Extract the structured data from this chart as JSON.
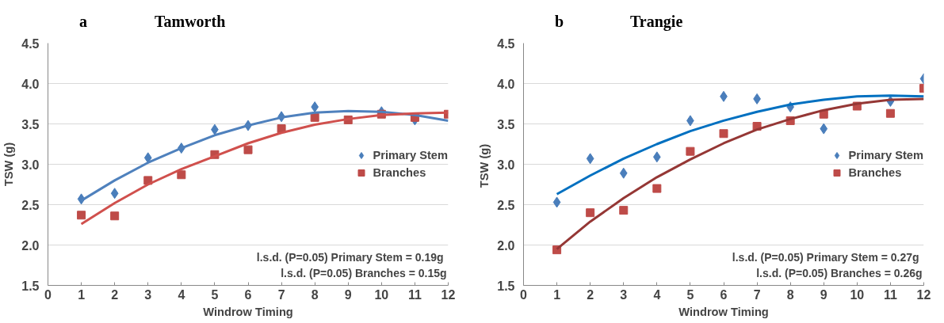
{
  "chart_data": [
    {
      "type": "scatter",
      "title": "Tamworth",
      "xlabel": "Windrow Timing",
      "ylabel": "TSW (g)",
      "annotations": [
        "a",
        "l.s.d. (P=0.05) Primary Stem =  0.19g",
        "l.s.d. (P=0.05) Branches = 0.15g"
      ],
      "x": [
        1,
        2,
        3,
        4,
        5,
        6,
        7,
        8,
        9,
        10,
        11,
        12
      ],
      "xlim": [
        0,
        12
      ],
      "xticks": [
        0,
        1,
        2,
        3,
        4,
        5,
        6,
        7,
        8,
        9,
        10,
        11,
        12
      ],
      "ylim": [
        1.5,
        4.5
      ],
      "yticks": [
        1.5,
        {
          "value": 2,
          "label": "2.0"
        },
        2.5,
        {
          "value": 3,
          "label": "3.0"
        },
        3.5,
        {
          "value": 4,
          "label": "4.0"
        },
        4.5
      ],
      "grid": "y",
      "legend": "right",
      "series": [
        {
          "name": "Primary Stem",
          "color": "#4a7ebb",
          "marker": "diamond",
          "values": [
            2.57,
            2.64,
            3.08,
            3.2,
            3.43,
            3.48,
            3.59,
            3.71,
            null,
            3.65,
            3.55,
            null
          ]
        },
        {
          "name": "Branches",
          "color": "#be4b48",
          "marker": "square",
          "values": [
            2.37,
            2.36,
            2.8,
            2.87,
            3.12,
            3.18,
            3.44,
            3.58,
            3.55,
            3.62,
            3.58,
            3.62
          ]
        },
        {
          "type": "line",
          "color": "#4f81bd",
          "marker": "none",
          "values": [
            2.55,
            2.8,
            3.02,
            3.2,
            3.36,
            3.48,
            3.58,
            3.64,
            3.66,
            3.65,
            3.61,
            3.54
          ]
        },
        {
          "type": "line",
          "color": "#d0504d",
          "marker": "none",
          "values": [
            2.26,
            2.52,
            2.75,
            2.94,
            3.1,
            3.26,
            3.39,
            3.49,
            3.56,
            3.61,
            3.63,
            3.64
          ]
        }
      ]
    },
    {
      "type": "scatter",
      "title": "Trangie",
      "xlabel": "Windrow Timing",
      "ylabel": "TSW  (g)",
      "annotations": [
        "b",
        "l.s.d. (P=0.05) Primary Stem =  0.27g",
        "l.s.d. (P=0.05) Branches = 0.26g"
      ],
      "x": [
        1,
        2,
        3,
        4,
        5,
        6,
        7,
        8,
        9,
        10,
        11,
        12
      ],
      "xlim": [
        0,
        12
      ],
      "xticks": [
        0,
        1,
        2,
        3,
        4,
        5,
        6,
        7,
        8,
        9,
        10,
        11,
        12
      ],
      "ylim": [
        1.5,
        4.5
      ],
      "yticks": [
        1.5,
        {
          "value": 2,
          "label": "2.0"
        },
        2.5,
        {
          "value": 3,
          "label": "3.0"
        },
        3.5,
        {
          "value": 4,
          "label": "4.0"
        },
        4.5
      ],
      "grid": "y",
      "legend": "right",
      "series": [
        {
          "name": "Primary Stem",
          "color": "#4a7ebb",
          "marker": "diamond",
          "values": [
            2.53,
            3.07,
            2.89,
            3.09,
            3.54,
            3.84,
            3.81,
            3.71,
            3.44,
            null,
            3.78,
            4.06
          ]
        },
        {
          "name": "Branches",
          "color": "#be4b48",
          "marker": "square",
          "values": [
            1.94,
            2.4,
            2.43,
            2.7,
            3.16,
            3.38,
            3.47,
            3.54,
            3.62,
            3.72,
            3.63,
            3.94
          ]
        },
        {
          "type": "line",
          "color": "#0070c0",
          "marker": "none",
          "values": [
            2.63,
            2.86,
            3.07,
            3.25,
            3.41,
            3.54,
            3.65,
            3.74,
            3.8,
            3.84,
            3.85,
            3.84
          ]
        },
        {
          "type": "line",
          "color": "#953735",
          "marker": "none",
          "values": [
            1.95,
            2.29,
            2.58,
            2.84,
            3.06,
            3.26,
            3.43,
            3.56,
            3.67,
            3.75,
            3.8,
            3.81
          ]
        }
      ]
    }
  ]
}
